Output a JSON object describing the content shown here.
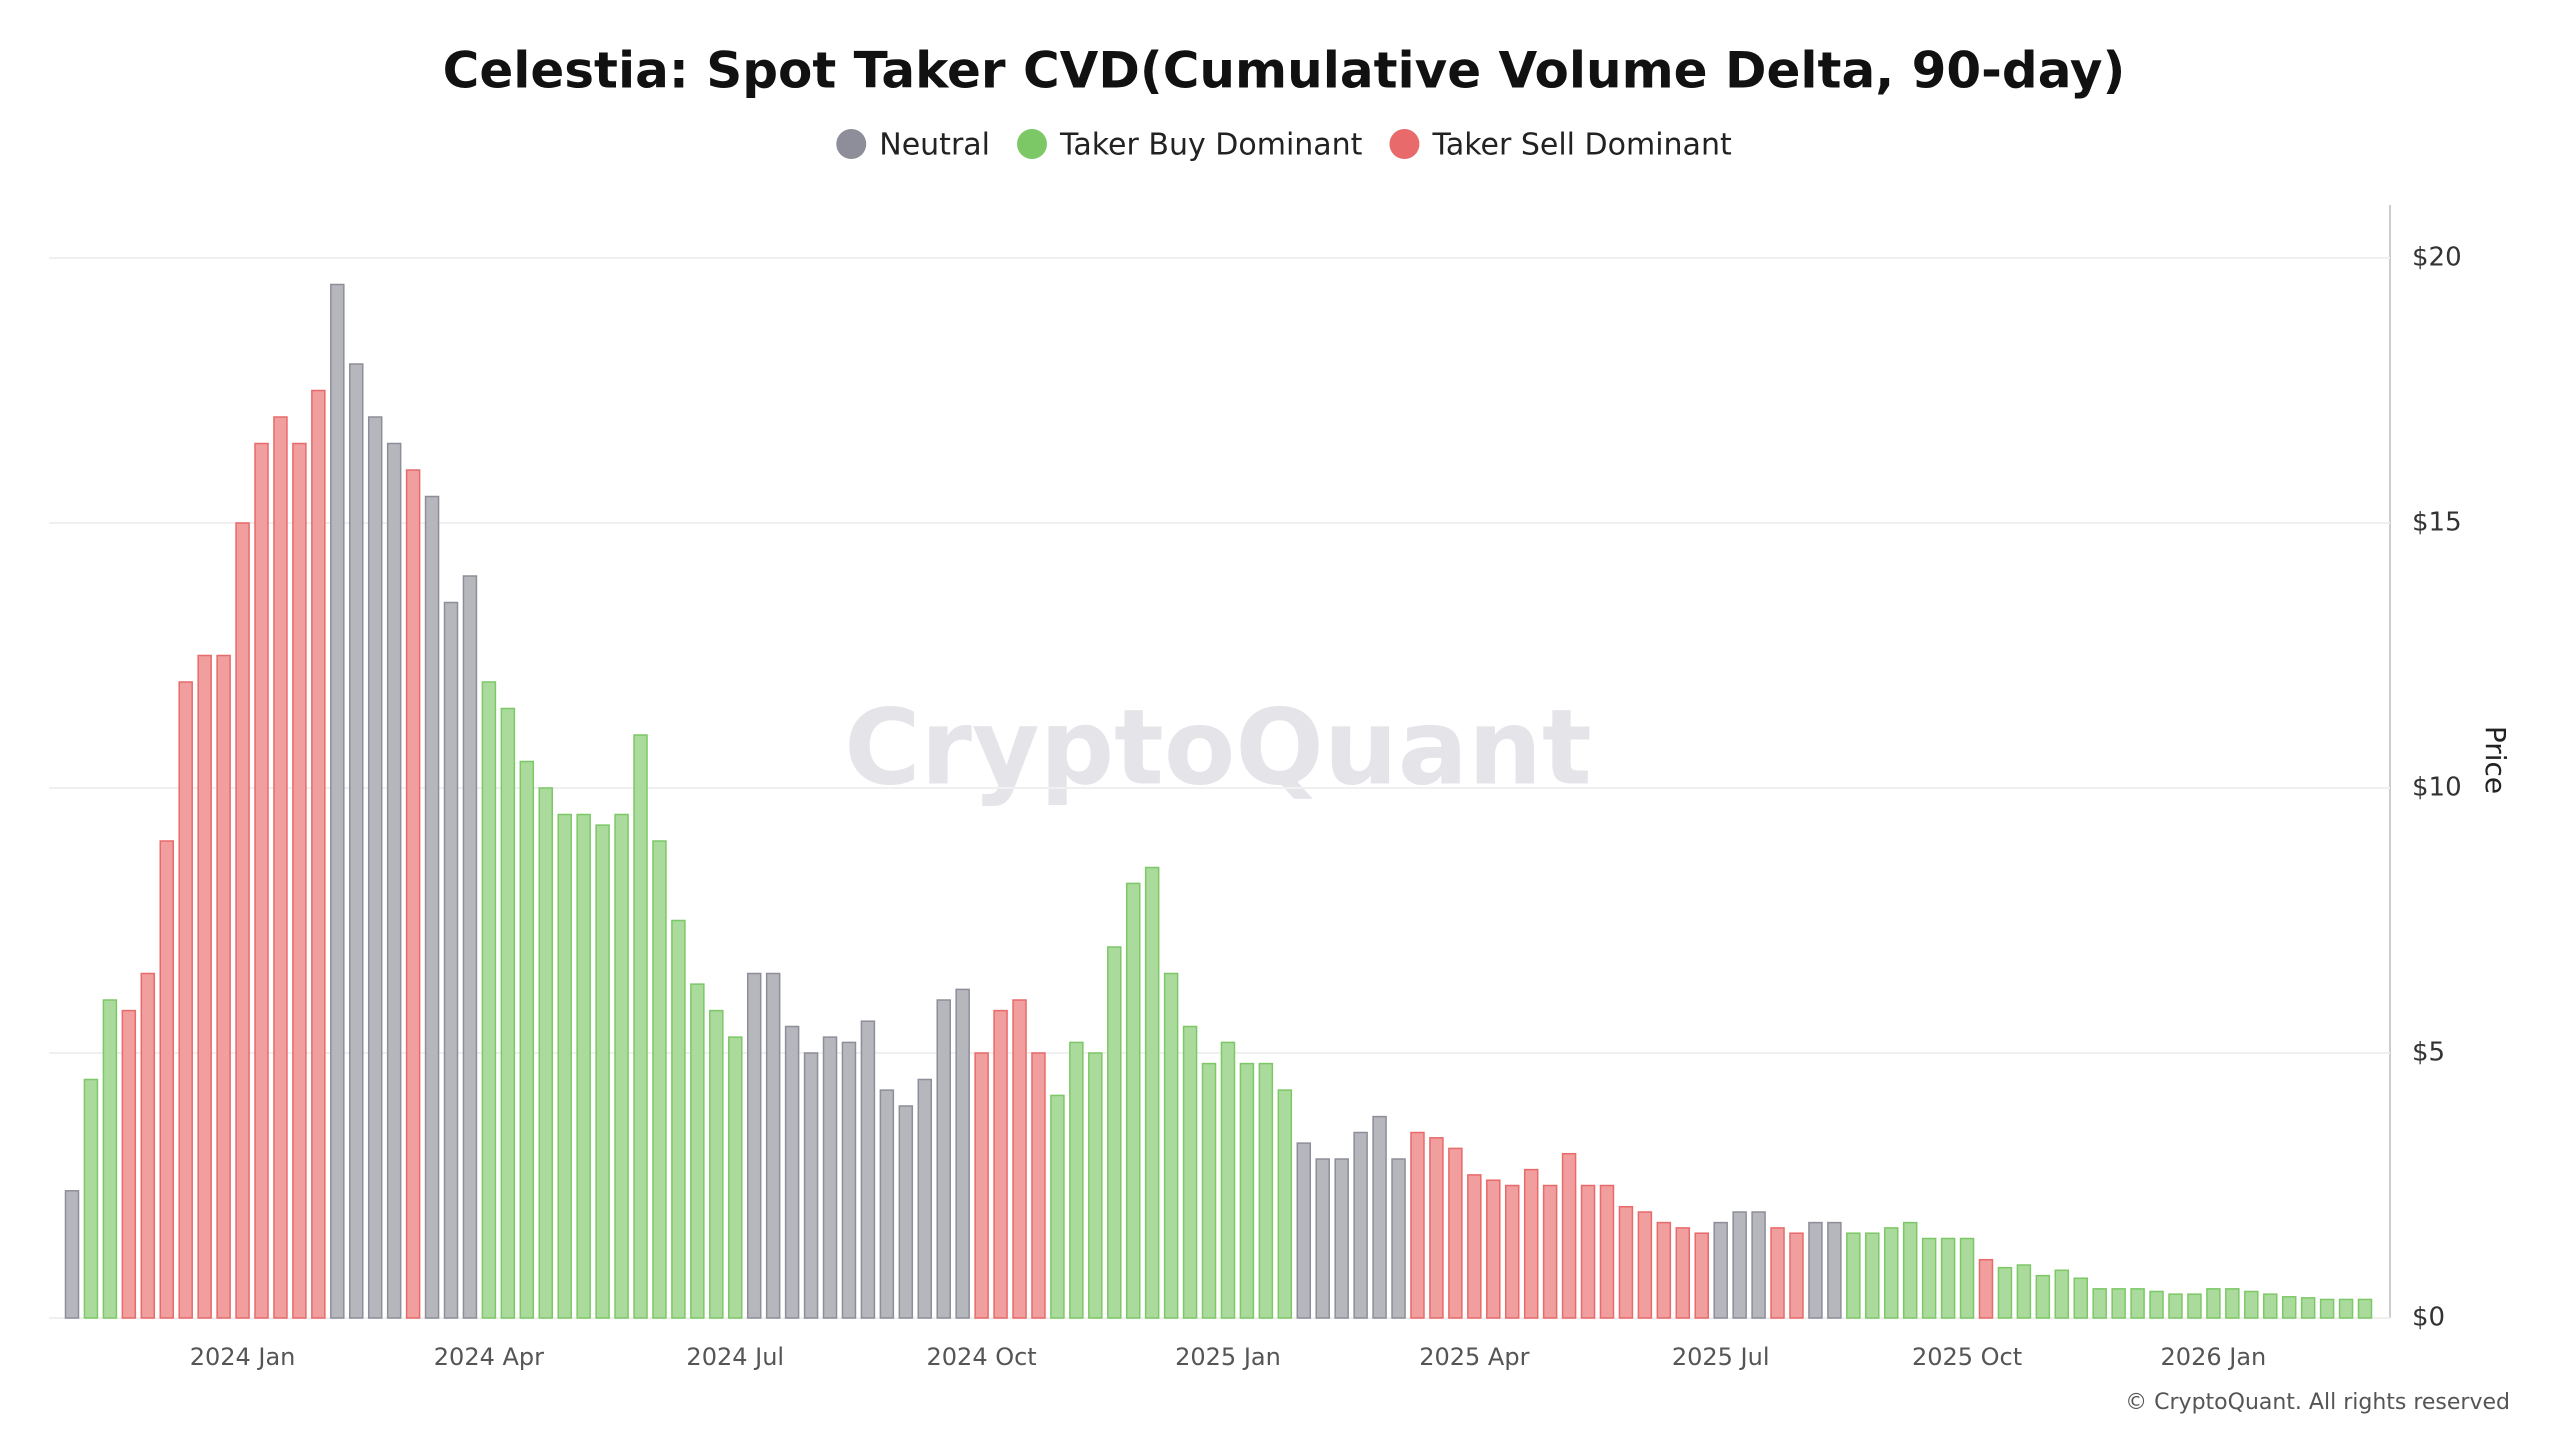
{
  "chart_data": {
    "type": "bar",
    "title": "Celestia: Spot Taker CVD(Cumulative Volume Delta, 90-day)",
    "y_label": "Price",
    "watermark": "CryptoQuant",
    "copyright": "© CryptoQuant. All rights reserved",
    "categories": [
      null,
      null,
      null,
      null,
      null,
      null,
      null,
      null,
      null,
      "2024 Jan",
      null,
      null,
      null,
      null,
      null,
      null,
      null,
      null,
      null,
      null,
      null,
      null,
      "2024 Apr",
      null,
      null,
      null,
      null,
      null,
      null,
      null,
      null,
      null,
      null,
      null,
      null,
      "2024 Jul",
      null,
      null,
      null,
      null,
      null,
      null,
      null,
      null,
      null,
      null,
      null,
      null,
      "2024 Oct",
      null,
      null,
      null,
      null,
      null,
      null,
      null,
      null,
      null,
      null,
      null,
      null,
      "2025 Jan",
      null,
      null,
      null,
      null,
      null,
      null,
      null,
      null,
      null,
      null,
      null,
      null,
      "2025 Apr",
      null,
      null,
      null,
      null,
      null,
      null,
      null,
      null,
      null,
      null,
      null,
      null,
      "2025 Jul",
      null,
      null,
      null,
      null,
      null,
      null,
      null,
      null,
      null,
      null,
      null,
      null,
      "2025 Oct",
      null,
      null,
      null,
      null,
      null,
      null,
      null,
      null,
      null,
      null,
      null,
      null,
      "2026 Jan",
      null,
      null,
      null,
      null,
      null,
      null,
      null,
      null
    ],
    "series": [
      {
        "name": "Neutral",
        "color": "#8e8e9a",
        "values": [
          2.4,
          null,
          null,
          null,
          null,
          null,
          null,
          null,
          null,
          null,
          null,
          null,
          null,
          null,
          19.5,
          18.0,
          17.0,
          16.5,
          null,
          15.5,
          13.5,
          14.0,
          null,
          null,
          null,
          null,
          null,
          null,
          null,
          null,
          null,
          null,
          null,
          null,
          null,
          null,
          6.5,
          6.5,
          5.5,
          5.0,
          5.3,
          5.2,
          5.6,
          4.3,
          4.0,
          4.5,
          6.0,
          6.2,
          null,
          null,
          null,
          null,
          null,
          null,
          null,
          null,
          null,
          null,
          null,
          null,
          null,
          null,
          null,
          null,
          null,
          3.3,
          3.0,
          3.0,
          3.5,
          3.8,
          3.0,
          null,
          null,
          null,
          null,
          null,
          null,
          null,
          null,
          null,
          null,
          null,
          null,
          null,
          null,
          null,
          null,
          1.8,
          2.0,
          2.0,
          null,
          null,
          1.8,
          1.8,
          null,
          null,
          null,
          null,
          null,
          null,
          null,
          null,
          null,
          null,
          null,
          null,
          null,
          null,
          null,
          null,
          null,
          null,
          null,
          null,
          null,
          null,
          null,
          null,
          null,
          null,
          null,
          null
        ]
      },
      {
        "name": "Taker Buy Dominant",
        "color": "#7cc866",
        "values": [
          null,
          4.5,
          6.0,
          null,
          null,
          null,
          null,
          null,
          null,
          null,
          null,
          null,
          null,
          null,
          null,
          null,
          null,
          null,
          null,
          null,
          null,
          null,
          12.0,
          11.5,
          10.5,
          10.0,
          9.5,
          9.5,
          9.3,
          9.5,
          11.0,
          9.0,
          7.5,
          6.3,
          5.8,
          5.3,
          null,
          null,
          null,
          null,
          null,
          null,
          null,
          null,
          null,
          null,
          null,
          null,
          null,
          null,
          null,
          null,
          4.2,
          5.2,
          5.0,
          7.0,
          8.2,
          8.5,
          6.5,
          5.5,
          4.8,
          5.2,
          4.8,
          4.8,
          4.3,
          null,
          null,
          null,
          null,
          null,
          null,
          null,
          null,
          null,
          null,
          null,
          null,
          null,
          null,
          null,
          null,
          null,
          null,
          null,
          null,
          null,
          null,
          null,
          null,
          null,
          null,
          null,
          null,
          null,
          1.6,
          1.6,
          1.7,
          1.8,
          1.5,
          1.5,
          1.5,
          null,
          0.95,
          1.0,
          0.8,
          0.9,
          0.75,
          0.55,
          0.55,
          0.55,
          0.5,
          0.45,
          0.45,
          0.55,
          0.55,
          0.5,
          0.45,
          0.4,
          0.38,
          0.35,
          0.35,
          0.35
        ]
      },
      {
        "name": "Taker Sell Dominant",
        "color": "#e86a6a",
        "values": [
          null,
          null,
          null,
          5.8,
          6.5,
          9.0,
          12.0,
          12.5,
          12.5,
          15.0,
          16.5,
          17.0,
          16.5,
          17.5,
          null,
          null,
          null,
          null,
          16.0,
          null,
          null,
          null,
          null,
          null,
          null,
          null,
          null,
          null,
          null,
          null,
          null,
          null,
          null,
          null,
          null,
          null,
          null,
          null,
          null,
          null,
          null,
          null,
          null,
          null,
          null,
          null,
          null,
          null,
          5.0,
          5.8,
          6.0,
          5.0,
          null,
          null,
          null,
          null,
          null,
          null,
          null,
          null,
          null,
          null,
          null,
          null,
          null,
          null,
          null,
          null,
          null,
          null,
          null,
          3.5,
          3.4,
          3.2,
          2.7,
          2.6,
          2.5,
          2.8,
          2.5,
          3.1,
          2.5,
          2.5,
          2.1,
          2.0,
          1.8,
          1.7,
          1.6,
          null,
          null,
          null,
          1.7,
          1.6,
          null,
          null,
          null,
          null,
          null,
          null,
          null,
          null,
          null,
          1.1,
          null,
          null,
          null,
          null,
          null,
          null,
          null,
          null,
          null,
          null,
          null,
          null,
          null,
          null,
          null,
          null,
          null,
          null,
          null,
          null
        ]
      }
    ],
    "ylim": [
      0,
      21
    ],
    "yticks": [
      {
        "value": 0,
        "label": "$0"
      },
      {
        "value": 5,
        "label": "$5"
      },
      {
        "value": 10,
        "label": "$10"
      },
      {
        "value": 15,
        "label": "$15"
      },
      {
        "value": 20,
        "label": "$20"
      }
    ],
    "grid": true
  }
}
